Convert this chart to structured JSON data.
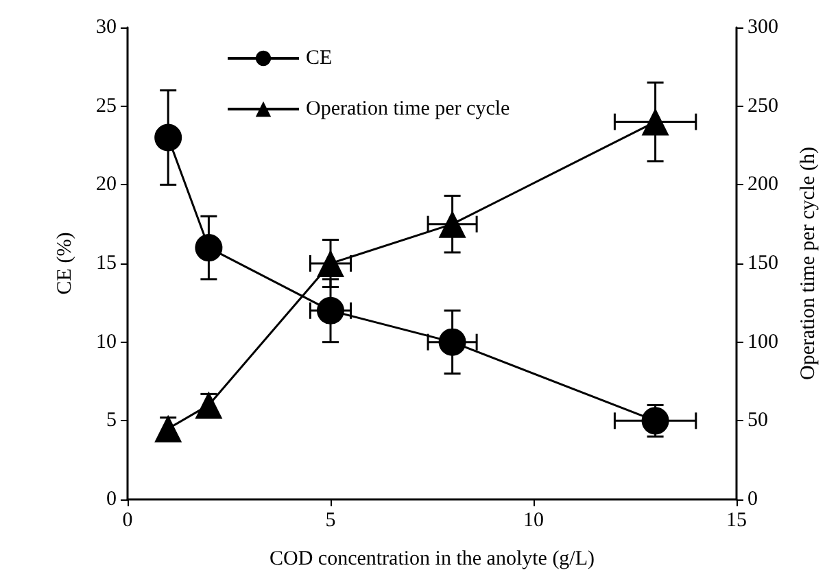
{
  "chart_data": {
    "type": "line",
    "xlabel": "COD concentration in the anolyte (g/L)",
    "ylabel": "CE (%)",
    "y2label": "Operation time per cycle (h)",
    "xlim": [
      0,
      15
    ],
    "xticks": [
      0,
      5,
      10,
      15
    ],
    "ylim": [
      0,
      30
    ],
    "yticks": [
      0,
      5,
      10,
      15,
      20,
      25,
      30
    ],
    "y2lim": [
      0,
      300
    ],
    "y2ticks": [
      0,
      50,
      100,
      150,
      200,
      250,
      300
    ],
    "grid": false,
    "legend": "top left",
    "line_style": "solid",
    "series": [
      {
        "name": "CE",
        "color": "#000000",
        "marker": "circle",
        "x": [
          1,
          2,
          5,
          8,
          13
        ],
        "values": [
          23,
          16,
          12,
          10,
          5
        ],
        "errors": [
          3,
          2,
          2,
          2,
          1
        ],
        "xerrors": [
          null,
          null,
          0.5,
          0.6,
          1
        ]
      },
      {
        "name": "Operation time per cycle",
        "color": "#000000",
        "marker": "triangle",
        "axis": "y2",
        "x": [
          1,
          2,
          5,
          8,
          13
        ],
        "values": [
          45,
          60,
          150,
          175,
          240
        ],
        "errors": [
          7,
          7,
          15,
          18,
          25
        ],
        "xerrors": [
          null,
          null,
          0.5,
          0.6,
          1
        ]
      }
    ]
  }
}
